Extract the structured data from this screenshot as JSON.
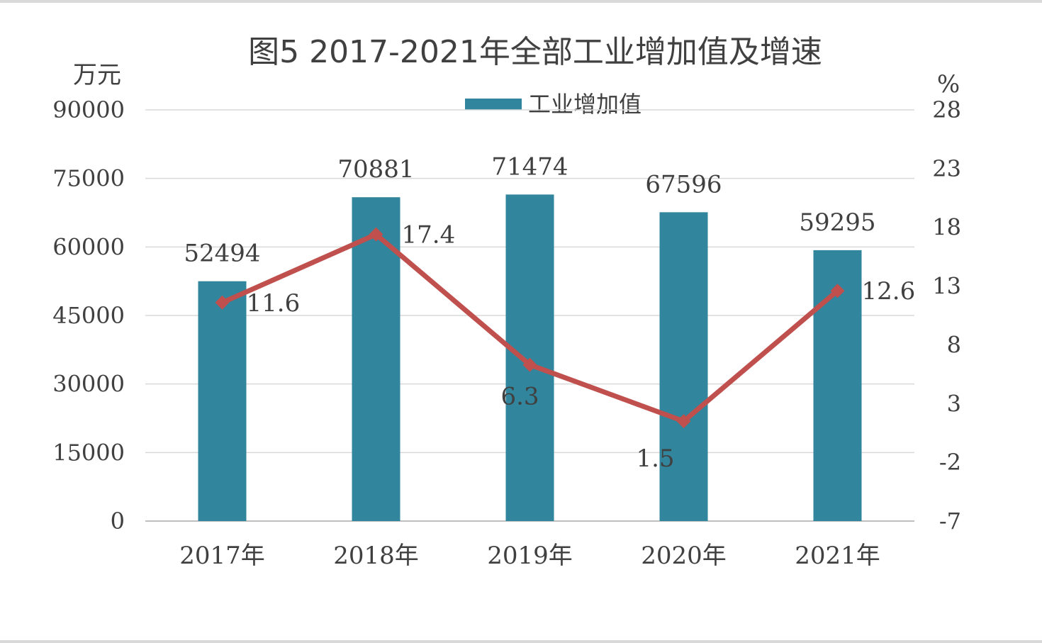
{
  "chart_data": {
    "type": "bar+line",
    "title": "图5   2017-2021年全部工业增加值及增速",
    "categories": [
      "2017年",
      "2018年",
      "2019年",
      "2020年",
      "2021年"
    ],
    "series": [
      {
        "name": "工业增加值",
        "type": "bar",
        "axis": "left",
        "values": [
          52494,
          70881,
          71474,
          67596,
          59295
        ],
        "color": "#31859c"
      },
      {
        "name": "",
        "type": "line",
        "axis": "right",
        "values": [
          11.6,
          17.4,
          6.3,
          1.5,
          12.6
        ],
        "color": "#c0504d"
      }
    ],
    "left_axis": {
      "unit": "万元",
      "ylim": [
        0,
        90000
      ],
      "ticks": [
        "0",
        "15000",
        "30000",
        "45000",
        "60000",
        "75000",
        "90000"
      ]
    },
    "right_axis": {
      "unit": "%",
      "ylim": [
        -7,
        28
      ],
      "ticks": [
        "-7",
        "-2",
        "3",
        "8",
        "13",
        "18",
        "23",
        "28"
      ]
    },
    "bar_labels": [
      "52494",
      "70881",
      "71474",
      "67596",
      "59295"
    ],
    "line_labels": [
      "11.6",
      "17.4",
      "6.3",
      "1.5",
      "12.6"
    ],
    "grid": true,
    "legend": "top-center"
  }
}
